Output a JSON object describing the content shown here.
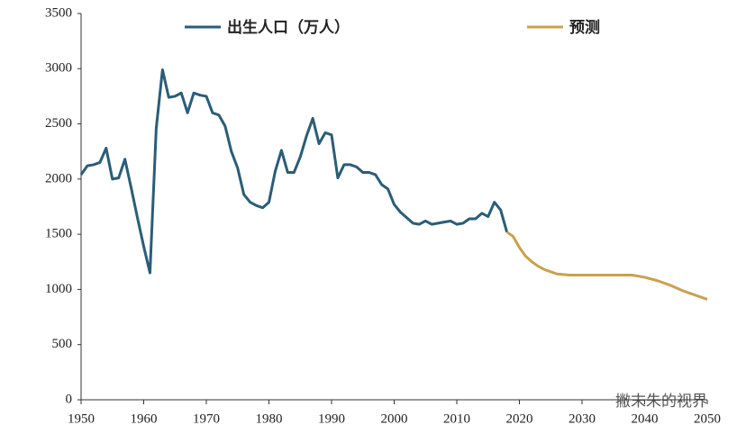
{
  "chart_data": {
    "type": "line",
    "xlim": [
      1950,
      2050
    ],
    "xticks": [
      1950,
      1960,
      1970,
      1980,
      1990,
      2000,
      2010,
      2020,
      2030,
      2040,
      2050
    ],
    "ylim": [
      0,
      3500
    ],
    "yticks": [
      0,
      500,
      1000,
      1500,
      2000,
      2500,
      3000,
      3500
    ],
    "series": [
      {
        "name": "出生人口（万人）",
        "color": "#2a5d78",
        "x": [
          1950,
          1951,
          1952,
          1953,
          1954,
          1955,
          1956,
          1957,
          1958,
          1959,
          1960,
          1961,
          1962,
          1963,
          1964,
          1965,
          1966,
          1967,
          1968,
          1969,
          1970,
          1971,
          1972,
          1973,
          1974,
          1975,
          1976,
          1977,
          1978,
          1979,
          1980,
          1981,
          1982,
          1983,
          1984,
          1985,
          1986,
          1987,
          1988,
          1989,
          1990,
          1991,
          1992,
          1993,
          1994,
          1995,
          1996,
          1997,
          1998,
          1999,
          2000,
          2001,
          2002,
          2003,
          2004,
          2005,
          2006,
          2007,
          2008,
          2009,
          2010,
          2011,
          2012,
          2013,
          2014,
          2015,
          2016,
          2017,
          2018
        ],
        "values": [
          2040,
          2120,
          2130,
          2150,
          2280,
          2000,
          2010,
          2180,
          1920,
          1650,
          1390,
          1150,
          2460,
          2990,
          2740,
          2750,
          2780,
          2600,
          2780,
          2760,
          2750,
          2600,
          2580,
          2480,
          2250,
          2100,
          1860,
          1790,
          1760,
          1740,
          1790,
          2070,
          2260,
          2060,
          2060,
          2200,
          2390,
          2550,
          2320,
          2420,
          2400,
          2010,
          2130,
          2130,
          2110,
          2060,
          2060,
          2040,
          1950,
          1910,
          1770,
          1700,
          1650,
          1600,
          1590,
          1620,
          1590,
          1600,
          1610,
          1620,
          1590,
          1600,
          1640,
          1640,
          1690,
          1660,
          1790,
          1720,
          1520
        ]
      },
      {
        "name": "预测",
        "color": "#c9a14f",
        "x": [
          2018,
          2019,
          2020,
          2021,
          2022,
          2023,
          2024,
          2025,
          2026,
          2028,
          2030,
          2035,
          2038,
          2040,
          2042,
          2044,
          2046,
          2048,
          2050
        ],
        "values": [
          1520,
          1480,
          1380,
          1300,
          1250,
          1210,
          1180,
          1160,
          1140,
          1130,
          1130,
          1130,
          1130,
          1110,
          1080,
          1040,
          990,
          950,
          910
        ]
      }
    ],
    "watermark": "撇末朱的视界"
  }
}
